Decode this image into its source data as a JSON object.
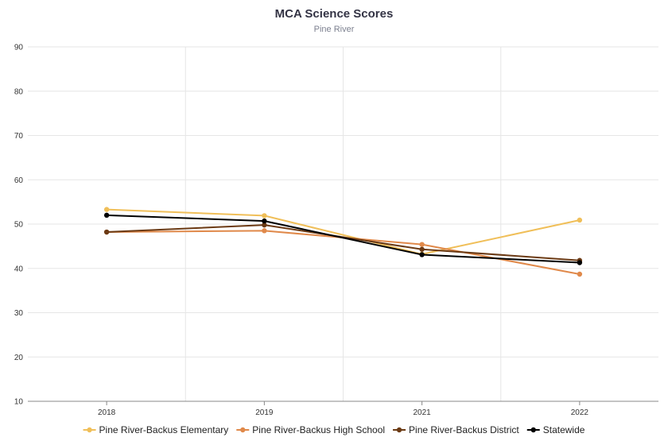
{
  "chart_data": {
    "type": "line",
    "title": "MCA Science Scores",
    "subtitle": "Pine River",
    "x": [
      "2018",
      "2019",
      "2021",
      "2022"
    ],
    "ylim": [
      10,
      90
    ],
    "yticks": [
      10,
      20,
      30,
      40,
      50,
      60,
      70,
      80,
      90
    ],
    "grid": true,
    "legend_position": "bottom",
    "series": [
      {
        "name": "Pine River-Backus Elementary",
        "color": "#f0bf59",
        "values": [
          53.3,
          51.9,
          43.2,
          50.9
        ]
      },
      {
        "name": "Pine River-Backus High School",
        "color": "#e0894a",
        "values": [
          48.2,
          48.5,
          45.4,
          38.7
        ]
      },
      {
        "name": "Pine River-Backus District",
        "color": "#6b3a14",
        "values": [
          48.2,
          49.8,
          44.3,
          41.8
        ]
      },
      {
        "name": "Statewide",
        "color": "#000000",
        "values": [
          52.0,
          50.7,
          43.1,
          41.3
        ]
      }
    ]
  }
}
